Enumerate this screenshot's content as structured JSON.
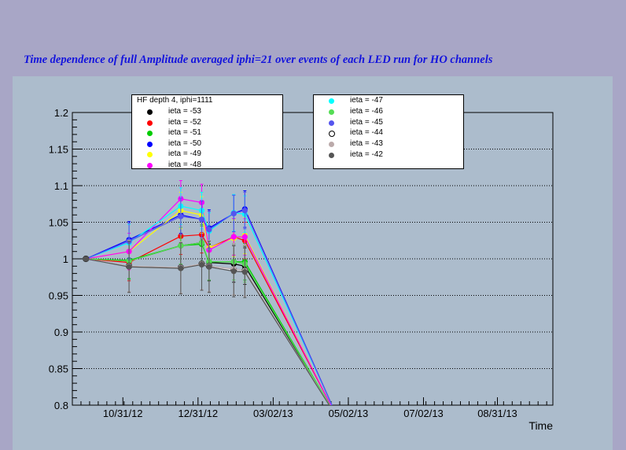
{
  "chart_data": {
    "type": "line",
    "title": "Time dependence of full Amplitude averaged iphi=21 over events of each LED run for HO channels",
    "xlabel": "Time",
    "ylabel": "",
    "ylim": [
      0.8,
      1.2
    ],
    "grid": "horizontal dotted",
    "y_ticks": [
      "0.8",
      "0.85",
      "0.9",
      "0.95",
      "1",
      "1.05",
      "1.1",
      "1.15",
      "1.2"
    ],
    "x_tick_labels": [
      "10/31/12",
      "12/31/12",
      "03/02/13",
      "05/02/13",
      "07/02/13",
      "08/31/13"
    ],
    "legend_header": "HF depth 4, iphi=1111",
    "x": [
      "10/01/12",
      "11/05/12",
      "12/17/12",
      "01/03/13",
      "01/09/13",
      "01/29/13",
      "02/07/13",
      "04/24/13"
    ],
    "series": [
      {
        "name": "ieta = -53",
        "color": "#000000",
        "values": [
          1.0,
          0.997,
          1.018,
          1.022,
          0.995,
          0.993,
          0.99,
          0.78
        ]
      },
      {
        "name": "ieta = -52",
        "color": "#ff0000",
        "values": [
          1.0,
          0.995,
          1.031,
          1.033,
          1.015,
          1.03,
          1.025,
          0.78
        ]
      },
      {
        "name": "ieta = -51",
        "color": "#00cc00",
        "values": [
          1.0,
          0.998,
          1.018,
          1.02,
          0.996,
          0.996,
          0.996,
          0.78
        ]
      },
      {
        "name": "ieta = -50",
        "color": "#0000ff",
        "values": [
          1.0,
          1.026,
          1.06,
          1.054,
          1.042,
          1.062,
          1.068,
          0.78
        ]
      },
      {
        "name": "ieta = -49",
        "color": "#ffff00",
        "values": [
          1.0,
          1.01,
          1.066,
          1.06,
          1.015,
          1.028,
          1.032,
          0.78
        ]
      },
      {
        "name": "ieta = -48",
        "color": "#ff00ff",
        "values": [
          1.0,
          1.01,
          1.082,
          1.077,
          1.012,
          1.03,
          1.03,
          0.78
        ]
      },
      {
        "name": "ieta = -47",
        "color": "#00ffff",
        "values": [
          1.0,
          1.022,
          1.072,
          1.066,
          1.038,
          1.063,
          1.061,
          0.78
        ]
      },
      {
        "name": "ieta = -46",
        "color": "#55dd55",
        "values": [
          1.0,
          0.997,
          1.018,
          1.022,
          0.996,
          0.996,
          0.993,
          0.78
        ]
      },
      {
        "name": "ieta = -45",
        "color": "#5555ee",
        "values": [
          1.0,
          1.024,
          1.058,
          1.054,
          1.04,
          1.062,
          1.066,
          0.78
        ]
      },
      {
        "name": "ieta = -44",
        "color": "#ffffff",
        "values": [
          1.0,
          0.99,
          0.988,
          0.993,
          0.99,
          0.985,
          0.984,
          0.78
        ]
      },
      {
        "name": "ieta = -43",
        "color": "#bbaaaa",
        "values": [
          1.0,
          0.99,
          0.988,
          0.993,
          0.99,
          0.986,
          0.984,
          0.78
        ]
      },
      {
        "name": "ieta = -42",
        "color": "#555555",
        "values": [
          1.0,
          0.989,
          0.987,
          0.992,
          0.989,
          0.983,
          0.982,
          0.78
        ]
      }
    ]
  }
}
